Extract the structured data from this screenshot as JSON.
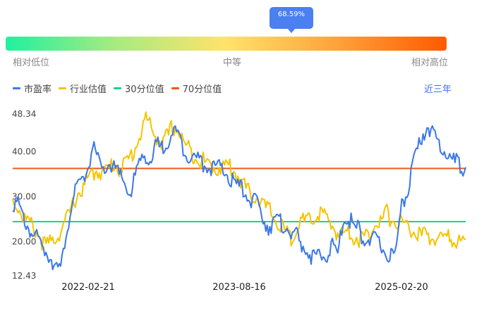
{
  "marker": {
    "label": "68.59%",
    "value_pct": 68.59
  },
  "gauge": {
    "low_label": "相对低位",
    "mid_label": "中等",
    "high_label": "相对高位"
  },
  "range_link": "近三年",
  "chart_data": {
    "type": "line",
    "ylim": [
      12.43,
      48.34
    ],
    "y_ticks": [
      "48.34",
      "40.00",
      "30.00",
      "20.00",
      "12.43"
    ],
    "x_tick_labels": [
      "2022-02-21",
      "2023-08-16",
      "2025-02-20"
    ],
    "legend_position": "top-left",
    "colors": {
      "pe": "#3b78e7",
      "industry": "#f5c400",
      "p30": "#19d48a",
      "p70": "#ee5a14"
    },
    "series": [
      {
        "name": "市盈率",
        "key": "pe",
        "values": [
          29.0,
          27.9,
          25.0,
          23.2,
          21.5,
          19.8,
          18.2,
          17.0,
          15.0,
          13.0,
          22.0,
          28.0,
          31.5,
          33.5,
          36.0,
          41.0,
          38.0,
          35.0,
          37.5,
          36.5,
          34.5,
          33.0,
          30.5,
          34.5,
          38.0,
          39.5,
          37.5,
          41.5,
          40.5,
          42.5,
          44.5,
          43.5,
          41.0,
          39.5,
          38.5,
          38.0,
          37.5,
          36.5,
          36.5,
          36.0,
          35.5,
          33.5,
          32.5,
          31.5,
          30.5,
          29.0,
          28.0,
          25.5,
          23.5,
          24.5,
          24.0,
          24.0,
          22.5,
          21.5,
          19.5,
          18.5,
          17.0,
          16.0,
          16.5,
          17.5,
          19.0,
          16.5,
          25.5,
          25.0,
          23.5,
          22.5,
          21.0,
          20.5,
          20.0,
          19.5,
          17.5,
          17.0,
          17.5,
          29.5,
          30.5,
          36.0,
          40.0,
          44.0,
          46.0,
          43.0,
          41.5,
          40.5,
          39.0,
          37.5,
          37.0,
          36.5
        ]
      },
      {
        "name": "行业估值",
        "key": "industry",
        "values": [
          29.0,
          28.0,
          25.5,
          24.0,
          23.0,
          21.5,
          19.0,
          19.5,
          21.0,
          22.5,
          24.5,
          27.0,
          30.5,
          31.5,
          33.5,
          35.0,
          36.0,
          35.5,
          36.0,
          37.5,
          36.5,
          37.0,
          38.5,
          41.0,
          44.0,
          47.5,
          45.0,
          43.5,
          41.5,
          43.0,
          45.5,
          45.0,
          42.0,
          40.5,
          39.5,
          38.5,
          37.5,
          37.0,
          36.5,
          36.5,
          37.0,
          36.5,
          35.0,
          33.5,
          31.0,
          30.5,
          30.0,
          28.0,
          27.0,
          25.5,
          23.5,
          22.5,
          20.5,
          23.0,
          24.5,
          24.0,
          24.5,
          26.0,
          26.5,
          24.5,
          23.5,
          22.0,
          21.5,
          22.5,
          21.5,
          20.5,
          21.0,
          21.5,
          25.5,
          24.0,
          26.5,
          25.0,
          24.5,
          24.0,
          23.5,
          22.5,
          21.5,
          21.0,
          21.5,
          20.5,
          21.0,
          21.0,
          20.5,
          20.5,
          20.0,
          20.5
        ]
      },
      {
        "name": "30分位值",
        "key": "p30",
        "constant": 24.45
      },
      {
        "name": "70分位值",
        "key": "p70",
        "constant": 36.25
      }
    ]
  }
}
